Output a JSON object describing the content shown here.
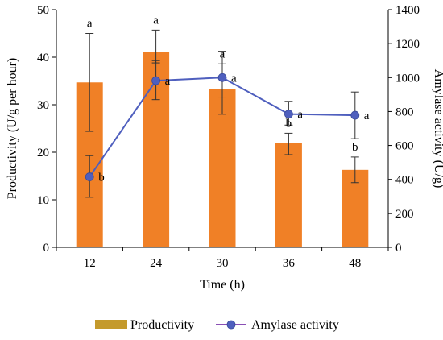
{
  "chart_data": {
    "type": "bar",
    "categories": [
      "12",
      "24",
      "30",
      "36",
      "48"
    ],
    "xlabel": "Time (h)",
    "y_left": {
      "label": "Productivity (U/g per hour)",
      "ylim": [
        0,
        50
      ],
      "ticks": [
        0,
        10,
        20,
        30,
        40,
        50
      ]
    },
    "y_right": {
      "label": "Amylase activity (U/g)",
      "ylim": [
        0,
        1400
      ],
      "ticks": [
        0,
        200,
        400,
        600,
        800,
        1000,
        1200,
        1400
      ]
    },
    "series": [
      {
        "name": "Productivity",
        "kind": "bar",
        "axis": "left",
        "color": "#F08026",
        "values": [
          34.7,
          41.1,
          33.3,
          22.0,
          16.3
        ],
        "err_low": [
          24.4,
          38.8,
          28.0,
          19.5,
          13.6
        ],
        "err_high": [
          45.0,
          45.7,
          38.6,
          24.0,
          19.0
        ],
        "labels": [
          "a",
          "a",
          "a",
          "b",
          "b"
        ]
      },
      {
        "name": "Amylase activity",
        "kind": "line",
        "axis": "right",
        "color": "#4F5FBE",
        "values": [
          415,
          982,
          1000,
          785,
          778
        ],
        "err_low": [
          295,
          870,
          885,
          720,
          640
        ],
        "err_high": [
          540,
          1100,
          1155,
          860,
          915
        ],
        "labels": [
          "b",
          "a",
          "a",
          "a",
          "a"
        ]
      }
    ],
    "legend": {
      "placement": "bottom",
      "entries": [
        "Productivity",
        "Amylase activity"
      ]
    },
    "grid": false
  }
}
